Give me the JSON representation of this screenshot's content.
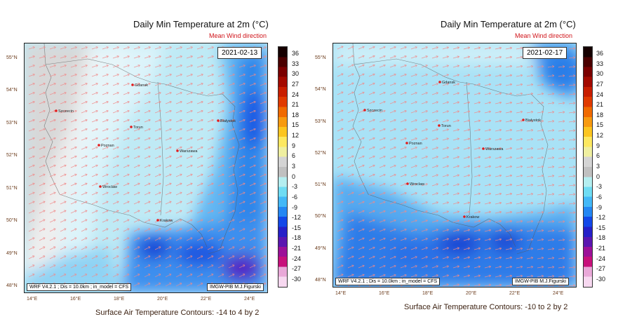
{
  "panels": [
    {
      "title": "Daily Min Temperature at 2m (",
      "title_unit": "°C",
      "title_end": ")",
      "subtitle": "Mean Wind direction",
      "date": "2021-02-13",
      "info_left": "WRF V4.2.1 ; Dis = 10.0km ; in_model = CFS",
      "info_right": "IMGW-PIB M.J.Figurski",
      "footer": "Surface Air Temperature Contours: -14 to 4 by 2",
      "temperature_field": "mild-west",
      "cities": [
        "Gdansk",
        "Szczecin",
        "Torun",
        "Bialystok",
        "Poznan",
        "Warszawa",
        "Wroclaw",
        "Krakow"
      ]
    },
    {
      "title": "Daily Min Temperature at 2m (",
      "title_unit": "°C",
      "title_end": ")",
      "subtitle": "Mean Wind direction",
      "date": "2021-02-17",
      "info_left": "WRF V4.2.1 ; Dis = 10.0km ; in_model = CFS",
      "info_right": "IMGW-PIB M.J.Figurski",
      "footer": "Surface Air Temperature Contours: -10 to 2 by 2",
      "temperature_field": "uniform-cold-south",
      "cities": [
        "Gdansk",
        "Szczecin",
        "Torun",
        "Bialystok",
        "Poznan",
        "Warszawa",
        "Wroclaw",
        "Krakow"
      ]
    }
  ],
  "lat_labels": [
    "55°N",
    "54°N",
    "53°N",
    "52°N",
    "51°N",
    "50°N",
    "49°N",
    "48°N"
  ],
  "lon_labels": [
    "14°E",
    "16°E",
    "18°E",
    "20°E",
    "22°E",
    "24°E"
  ],
  "colorbar": {
    "ticks": [
      "36",
      "33",
      "30",
      "27",
      "24",
      "21",
      "18",
      "15",
      "12",
      "9",
      "6",
      "3",
      "0",
      "-3",
      "-6",
      "-9",
      "-12",
      "-15",
      "-18",
      "-21",
      "-24",
      "-27",
      "-30"
    ],
    "colors": [
      "#150000",
      "#4a0000",
      "#7a0000",
      "#a30a00",
      "#c81e00",
      "#e03a00",
      "#f06a00",
      "#f79a10",
      "#fcc520",
      "#fde860",
      "#efefa0",
      "#d4d4d4",
      "#c0c0c0",
      "#b4eef0",
      "#6fdcf3",
      "#43b8f7",
      "#2487f3",
      "#1348e8",
      "#2620c8",
      "#5a16b0",
      "#9c1098",
      "#c7107b",
      "#e9a8d8",
      "#f7d8f0"
    ]
  }
}
